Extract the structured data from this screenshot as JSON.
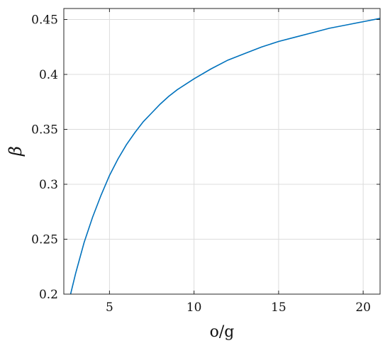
{
  "chart_data": {
    "type": "line",
    "xlabel": "o/g",
    "ylabel": "β",
    "xlim": [
      2.3,
      21
    ],
    "ylim": [
      0.2,
      0.46
    ],
    "xticks": [
      5,
      10,
      15,
      20
    ],
    "yticks": [
      0.2,
      0.25,
      0.3,
      0.35,
      0.4,
      0.45
    ],
    "xtick_labels": [
      "5",
      "10",
      "15",
      "20"
    ],
    "ytick_labels": [
      "0.2",
      "0.25",
      "0.3",
      "0.35",
      "0.4",
      "0.45"
    ],
    "grid": true,
    "line_color": "#0072bd",
    "series": [
      {
        "x": [
          2.7,
          3.0,
          3.5,
          4.0,
          4.5,
          5.0,
          5.5,
          6.0,
          6.5,
          7.0,
          7.5,
          8.0,
          8.5,
          9.0,
          9.5,
          10.0,
          11.0,
          12.0,
          13.0,
          14.0,
          15.0,
          16.0,
          17.0,
          18.0,
          19.0,
          20.0,
          21.0
        ],
        "y": [
          0.2,
          0.219,
          0.247,
          0.27,
          0.29,
          0.308,
          0.323,
          0.336,
          0.347,
          0.357,
          0.365,
          0.373,
          0.38,
          0.386,
          0.391,
          0.396,
          0.405,
          0.413,
          0.419,
          0.425,
          0.43,
          0.434,
          0.438,
          0.442,
          0.445,
          0.448,
          0.451
        ]
      }
    ]
  }
}
